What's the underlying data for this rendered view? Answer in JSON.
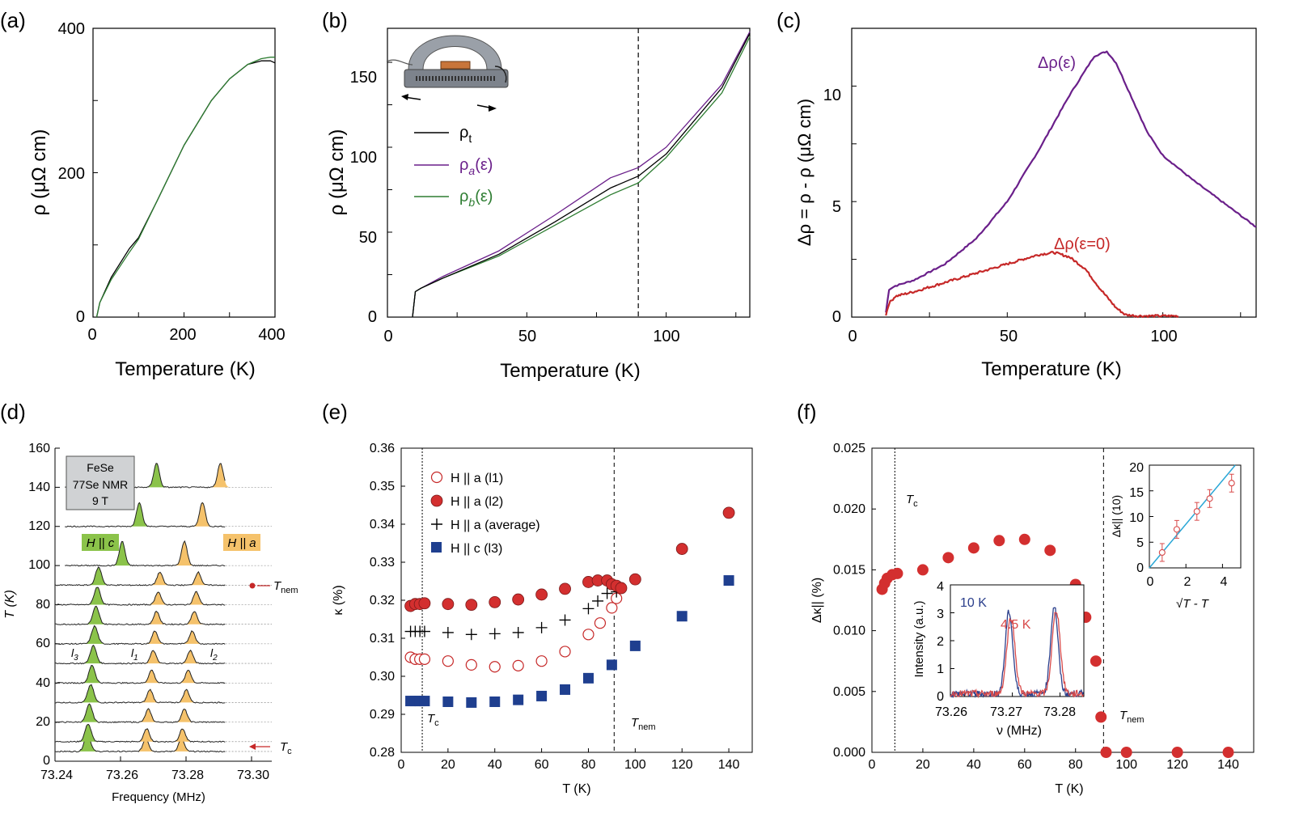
{
  "panels": {
    "a": {
      "letter": "(a)",
      "xlabel": "Temperature (K)",
      "ylabel": "ρ (μΩ cm)",
      "xticks": [
        "0",
        "200",
        "400"
      ],
      "yticks": [
        "0",
        "200",
        "400"
      ]
    },
    "b": {
      "letter": "(b)",
      "xlabel": "Temperature (K)",
      "ylabel": "ρ (μΩ cm)",
      "xticks": [
        "0",
        "50",
        "100"
      ],
      "yticks": [
        "0",
        "50",
        "100",
        "150"
      ],
      "legend": [
        "ρ",
        "ρ",
        "ρ"
      ]
    },
    "c": {
      "letter": "(c)",
      "xlabel": "Temperature (K)",
      "ylabel": "Δρ = ρ - ρ (μΩ cm)",
      "xticks": [
        "0",
        "50",
        "100"
      ],
      "yticks": [
        "0",
        "5",
        "10"
      ],
      "annotations": [
        "Δρ(ε)",
        "Δρ(ε=0)"
      ]
    },
    "d": {
      "letter": "(d)",
      "xlabel": "Frequency (MHz)",
      "ylabel": "T (K)",
      "xticks": [
        "73.24",
        "73.26",
        "73.28",
        "73.30"
      ],
      "yticks": [
        "0",
        "20",
        "40",
        "60",
        "80",
        "100",
        "120",
        "140",
        "160"
      ],
      "box": [
        "FeSe",
        "77Se NMR",
        "9 T"
      ],
      "labels": [
        "H || c",
        "H || a",
        "T",
        "T",
        "l",
        "l",
        "l"
      ]
    },
    "e": {
      "letter": "(e)",
      "xlabel": "T (K)",
      "ylabel": "κ (%)",
      "xticks": [
        "0",
        "20",
        "40",
        "60",
        "80",
        "100",
        "120",
        "140"
      ],
      "yticks": [
        "0.28",
        "0.29",
        "0.30",
        "0.31",
        "0.32",
        "0.33",
        "0.34",
        "0.35",
        "0.36"
      ],
      "legend": [
        "H || a (l1)",
        "H || a (l2)",
        "H || a (average)",
        "H || c (l3)"
      ],
      "tc_label": "T",
      "tnem_label": "T"
    },
    "f": {
      "letter": "(f)",
      "xlabel": "T (K)",
      "ylabel": "Δκ|| (%)",
      "xticks": [
        "0",
        "20",
        "40",
        "60",
        "80",
        "100",
        "120",
        "140"
      ],
      "yticks": [
        "0.000",
        "0.005",
        "0.010",
        "0.015",
        "0.020",
        "0.025"
      ],
      "tc_label": "T",
      "tnem_label": "T",
      "inset1": {
        "xlabel": "ν  (MHz)",
        "ylabel": "Intensity (a.u.)",
        "xticks": [
          "73.26",
          "73.27",
          "73.28"
        ],
        "yticks": [
          "0",
          "1",
          "2",
          "3",
          "4"
        ],
        "labels": [
          "10 K",
          "4.5 K"
        ]
      },
      "inset2": {
        "xlabel": "√T - T",
        "ylabel": "Δκ|| (10)",
        "xticks": [
          "0",
          "2",
          "4"
        ],
        "yticks": [
          "0",
          "5",
          "10",
          "15",
          "20"
        ]
      }
    }
  },
  "colors": {
    "black": "#000000",
    "purple": "#6a1f8a",
    "green": "#2e7d32",
    "red": "#c62828",
    "darkred": "#d32f2f",
    "blue": "#1f3f8f",
    "nmr_green": "#8bc34a",
    "nmr_orange": "#f5c26b",
    "inset_blue": "#2b3f8c",
    "inset_red": "#d84a4a",
    "fit_line": "#2aa7d6"
  },
  "chart_data": [
    {
      "type": "line",
      "panel": "a",
      "xlim": [
        0,
        400
      ],
      "ylim": [
        0,
        400
      ],
      "series": [
        {
          "x": [
            8,
            15,
            40,
            80,
            100,
            140,
            200,
            260,
            300,
            340,
            370,
            390,
            400
          ],
          "y": [
            0,
            20,
            55,
            95,
            110,
            160,
            238,
            300,
            330,
            350,
            355,
            355,
            352
          ]
        },
        {
          "x": [
            8,
            15,
            40,
            80,
            100,
            140,
            200,
            260,
            300,
            340,
            370,
            390,
            400
          ],
          "y": [
            0,
            20,
            52,
            90,
            108,
            160,
            238,
            300,
            330,
            350,
            358,
            360,
            360
          ]
        }
      ]
    },
    {
      "type": "line",
      "panel": "b",
      "xlim": [
        0,
        130
      ],
      "ylim": [
        0,
        170
      ],
      "vline": 90,
      "series": [
        {
          "x": [
            9,
            10,
            12,
            20,
            40,
            60,
            80,
            90,
            100,
            120,
            130
          ],
          "y": [
            0,
            15,
            17,
            23,
            37,
            56,
            76,
            83,
            96,
            135,
            167
          ]
        },
        {
          "x": [
            9,
            10,
            12,
            20,
            40,
            60,
            80,
            90,
            100,
            120,
            130
          ],
          "y": [
            0,
            15,
            17,
            24,
            39,
            60,
            82,
            88,
            100,
            137,
            168
          ]
        },
        {
          "x": [
            9,
            10,
            12,
            20,
            40,
            60,
            80,
            90,
            100,
            120,
            130
          ],
          "y": [
            0,
            15,
            17,
            23,
            36,
            54,
            72,
            79,
            94,
            132,
            165
          ]
        }
      ]
    },
    {
      "type": "line",
      "panel": "c",
      "xlim": [
        0,
        130
      ],
      "ylim": [
        0,
        12.5
      ],
      "series": [
        {
          "x": [
            11,
            12,
            14,
            20,
            30,
            40,
            50,
            60,
            70,
            78,
            82,
            85,
            90,
            95,
            100,
            110,
            120,
            130
          ],
          "y": [
            0.2,
            1.2,
            1.35,
            1.6,
            2.3,
            3.4,
            5.0,
            7.2,
            9.6,
            11.3,
            11.5,
            11.0,
            9.5,
            8.0,
            7.0,
            5.9,
            4.9,
            3.9
          ]
        },
        {
          "x": [
            11,
            12,
            14,
            20,
            30,
            40,
            50,
            60,
            65,
            70,
            75,
            80,
            85,
            88,
            92,
            100,
            105
          ],
          "y": [
            0.1,
            0.6,
            0.9,
            1.1,
            1.5,
            1.9,
            2.3,
            2.7,
            2.8,
            2.6,
            2.1,
            1.2,
            0.4,
            0.1,
            0.05,
            0.05,
            0.05
          ]
        }
      ]
    },
    {
      "type": "scatter",
      "panel": "d",
      "xlim": [
        73.24,
        73.3
      ],
      "ylim": [
        0,
        160
      ],
      "y": [
        5,
        10,
        20,
        30,
        40,
        50,
        60,
        70,
        80,
        90,
        100,
        120,
        140
      ]
    },
    {
      "type": "scatter",
      "panel": "e",
      "xlim": [
        0,
        150
      ],
      "ylim": [
        0.28,
        0.36
      ],
      "vlines": [
        9,
        91
      ],
      "series": [
        {
          "name": "H || a (l1)",
          "x": [
            4,
            6,
            8,
            10,
            20,
            30,
            40,
            50,
            60,
            70,
            80,
            85,
            90,
            92
          ],
          "y": [
            0.305,
            0.3045,
            0.3045,
            0.3045,
            0.304,
            0.303,
            0.3025,
            0.3028,
            0.304,
            0.3065,
            0.311,
            0.314,
            0.318,
            0.3205
          ]
        },
        {
          "name": "H || a (l2)",
          "x": [
            4,
            6,
            8,
            10,
            20,
            30,
            40,
            50,
            60,
            70,
            80,
            84,
            88,
            90,
            92,
            94,
            100,
            120,
            140
          ],
          "y": [
            0.3185,
            0.319,
            0.319,
            0.3192,
            0.319,
            0.3188,
            0.3195,
            0.3202,
            0.3215,
            0.323,
            0.3248,
            0.3252,
            0.3252,
            0.3242,
            0.3238,
            0.3232,
            0.3255,
            0.3335,
            0.343
          ]
        },
        {
          "name": "H || a (average)",
          "x": [
            4,
            6,
            8,
            10,
            20,
            30,
            40,
            50,
            60,
            70,
            80,
            84,
            88,
            92
          ],
          "y": [
            0.3118,
            0.3118,
            0.3118,
            0.3118,
            0.3115,
            0.311,
            0.3112,
            0.3115,
            0.3128,
            0.3148,
            0.3178,
            0.3198,
            0.3218,
            0.3222
          ]
        },
        {
          "name": "H || c (l3)",
          "x": [
            4,
            6,
            8,
            10,
            20,
            30,
            40,
            50,
            60,
            70,
            80,
            90,
            100,
            120,
            140
          ],
          "y": [
            0.2935,
            0.2935,
            0.2935,
            0.2935,
            0.2933,
            0.2931,
            0.2933,
            0.2938,
            0.2948,
            0.2965,
            0.2995,
            0.303,
            0.308,
            0.3158,
            0.3252
          ]
        }
      ]
    },
    {
      "type": "scatter",
      "panel": "f",
      "xlim": [
        0,
        150
      ],
      "ylim": [
        0,
        0.025
      ],
      "vlines": [
        9,
        91
      ],
      "x": [
        4,
        5,
        6,
        8,
        10,
        20,
        30,
        40,
        50,
        60,
        70,
        80,
        84,
        88,
        90,
        92,
        100,
        120,
        140
      ],
      "y": [
        0.0134,
        0.0139,
        0.0143,
        0.0146,
        0.0147,
        0.015,
        0.016,
        0.0168,
        0.0174,
        0.0175,
        0.0166,
        0.0138,
        0.0111,
        0.0075,
        0.0029,
        0,
        0,
        0,
        0
      ]
    },
    {
      "type": "line",
      "panel": "f-inset1",
      "xlim": [
        73.257,
        73.285
      ],
      "ylim": [
        0,
        4
      ],
      "series": [
        {
          "name": "10 K"
        },
        {
          "name": "4.5 K"
        }
      ]
    },
    {
      "type": "scatter",
      "panel": "f-inset2",
      "xlim": [
        0,
        5
      ],
      "ylim": [
        0,
        20
      ],
      "x": [
        0.7,
        1.5,
        2.6,
        3.3,
        4.5
      ],
      "y": [
        3,
        7.5,
        11,
        13.5,
        16.5
      ],
      "fit": {
        "x": [
          0,
          4.7
        ],
        "y": [
          0,
          20
        ]
      }
    }
  ]
}
